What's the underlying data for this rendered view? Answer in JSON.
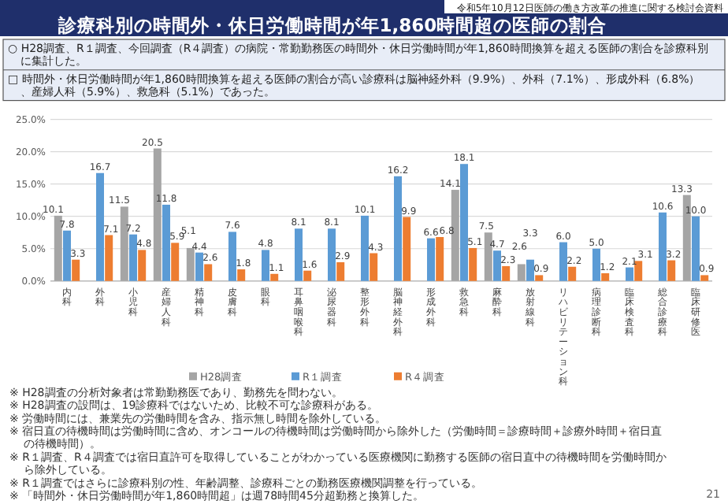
{
  "chart_data": {
    "type": "bar",
    "title": "診療科別の時間外・休日労働時間が年1,860時間超の医師の割合",
    "subtitle": "令和5年10月12日医師の働き方改革の推進に関する検討会資料",
    "annotations": [
      "○ H28調査、R１調査、今回調査（R４調査）の病院・常勤勤務医の時間外・休日労働時間が年1,860時間換算を超える医師の割合を診療科別に集計した。",
      "□ 時間外・休日労働時間が年1,860時間換算を超える医師の割合が高い診療科は脳神経外科（9.9%）、外科（7.1%）、形成外科（6.8%）、産婦人科（5.9%）、救急科（5.1%）であった。",
      "※ H28調査の分析対象者は常勤勤務医であり、勤務先を問わない。",
      "※ H28調査の設問は、19診療科ではないため、比較不可な診療科がある。",
      "※ 労働時間には、兼業先の労働時間を含み、指示無し時間を除外している。",
      "※ 宿日直の待機時間は労働時間に含め、オンコールの待機時間は労働時間から除外した（労働時間＝診療時間＋診療外時間＋宿日直の待機時間）。",
      "※ R１調査、R４調査では宿日直許可を取得していることがわかっている医療機関に勤務する医師の宿日直中の待機時間を労働時間から除外している。",
      "※ R１調査ではさらに診療科別の性、年齢調整、診療科ごとの勤務医療機関調整を行っている。",
      "※ 「時間外・休日労働時間が年1,860時間超」は週78時間45分超勤務と換算した。",
      "21"
    ],
    "categories": [
      "内科",
      "外科",
      "小児科",
      "産婦人科",
      "精神科",
      "皮膚科",
      "眼科",
      "耳鼻咽喉科",
      "泌尿器科",
      "整形外科",
      "脳神経外科",
      "形成外科",
      "救急科",
      "麻酔科",
      "放射線科",
      "リハビリテーション科",
      "病理診断科",
      "臨床検査科",
      "総合診療科",
      "臨床研修医"
    ],
    "series": [
      {
        "name": "H28調査",
        "color": "#a5a5a5",
        "values": [
          10.1,
          null,
          11.5,
          20.5,
          5.1,
          null,
          null,
          null,
          null,
          null,
          null,
          null,
          14.1,
          7.5,
          2.6,
          null,
          null,
          null,
          null,
          13.3
        ],
        "value_labels": [
          "10.1",
          null,
          "11.5",
          "20.5",
          "5.1",
          null,
          null,
          null,
          null,
          null,
          null,
          null,
          "14.1",
          "7.5",
          "2.6",
          null,
          null,
          null,
          null,
          "13.3"
        ]
      },
      {
        "name": "R１調査",
        "color": "#5b9bd5",
        "values": [
          7.8,
          16.7,
          7.2,
          11.8,
          4.4,
          7.6,
          4.8,
          8.1,
          8.1,
          10.1,
          16.2,
          6.6,
          18.1,
          4.7,
          3.3,
          6.0,
          5.0,
          2.1,
          10.6,
          10.0
        ],
        "value_labels": [
          "7.8",
          "16.7",
          "7.2",
          "11.8",
          "4.4",
          "7.6",
          "4.8",
          "8.1",
          "8.1",
          "10.1",
          "16.2",
          "6.6",
          "18.1",
          "4.7",
          "3.3",
          "6.0",
          "5.0",
          "2.1",
          "10.6",
          "10.0"
        ]
      },
      {
        "name": "R４調査",
        "color": "#ed7d31",
        "values": [
          3.3,
          7.1,
          4.8,
          5.9,
          2.6,
          1.8,
          1.1,
          1.6,
          2.9,
          4.3,
          9.9,
          6.8,
          5.1,
          2.3,
          0.9,
          2.2,
          1.2,
          3.1,
          3.2,
          0.9
        ],
        "value_labels": [
          "3.3",
          "7.1",
          "4.8",
          "5.9",
          "2.6",
          "1.8",
          "1.1",
          "1.6",
          "2.9",
          "4.3",
          "9.9",
          "6.8",
          "5.1",
          "2.3",
          "0.9",
          "2.2",
          "1.2",
          "3.1",
          "3.2",
          "0.9"
        ]
      }
    ],
    "ylim": [
      0,
      25
    ],
    "yticks": [
      {
        "value": 0,
        "label": "0.0%"
      },
      {
        "value": 5,
        "label": "5.0%"
      },
      {
        "value": 10,
        "label": "10.0%"
      },
      {
        "value": 15,
        "label": "15.0%"
      },
      {
        "value": 20,
        "label": "20.0%"
      },
      {
        "value": 25,
        "label": "25.0%"
      }
    ],
    "grid": "y",
    "legend": "bottom"
  }
}
